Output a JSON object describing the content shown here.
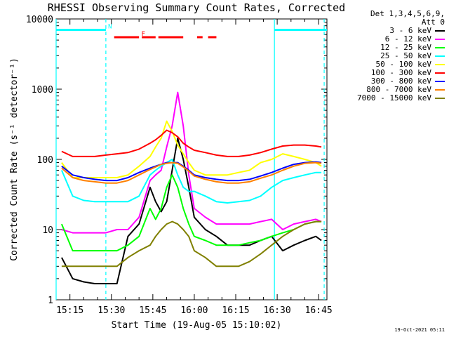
{
  "window": {
    "title": "RHESSI Observing Summary Count Rates, Corrected",
    "timestamp": "19-Oct-2021 05:11"
  },
  "legend": {
    "header_line1": "Det 1,3,4,5,6,9,",
    "header_line2": "Att 0"
  },
  "chart_data": {
    "type": "line",
    "title": "RHESSI Observing Summary Count Rates, Corrected",
    "xlabel": "Start Time (19-Aug-05 15:10:02)",
    "ylabel": "Corrected Count Rate (s⁻¹ detector⁻¹)",
    "yscale": "log",
    "xlim": [
      "15:10",
      "16:48"
    ],
    "ylim": [
      1,
      10000
    ],
    "x_ticks": [
      "15:15",
      "15:30",
      "15:45",
      "16:00",
      "16:15",
      "16:30",
      "16:45"
    ],
    "y_ticks": [
      "1",
      "10",
      "100",
      "1000",
      "10000"
    ],
    "legend_position": "top-right, outside plot",
    "grid": false,
    "x": [
      "15:12",
      "15:16",
      "15:20",
      "15:24",
      "15:28",
      "15:32",
      "15:36",
      "15:40",
      "15:44",
      "15:46",
      "15:48",
      "15:50",
      "15:52",
      "15:54",
      "15:56",
      "15:58",
      "16:00",
      "16:04",
      "16:08",
      "16:12",
      "16:16",
      "16:20",
      "16:24",
      "16:28",
      "16:32",
      "16:36",
      "16:40",
      "16:44",
      "16:46"
    ],
    "series": [
      {
        "name": "3 - 6 keV",
        "color": "#000000",
        "values": [
          4,
          2,
          1.8,
          1.7,
          1.7,
          1.7,
          8,
          12,
          40,
          25,
          18,
          25,
          70,
          200,
          100,
          40,
          15,
          10,
          8,
          6,
          6,
          6,
          7,
          8,
          5,
          6,
          7,
          8,
          7
        ]
      },
      {
        "name": "6 - 12 keV",
        "color": "#ff00ff",
        "values": [
          10,
          9,
          9,
          9,
          9,
          10,
          10,
          15,
          50,
          60,
          70,
          150,
          300,
          900,
          300,
          60,
          20,
          15,
          12,
          12,
          12,
          12,
          13,
          14,
          10,
          12,
          13,
          14,
          13
        ]
      },
      {
        "name": "12 - 25 keV",
        "color": "#00ff00",
        "values": [
          12,
          5,
          5,
          5,
          5,
          5,
          6,
          8,
          20,
          14,
          20,
          40,
          60,
          40,
          20,
          12,
          8,
          7,
          6,
          6,
          6,
          6.5,
          7,
          8,
          9,
          10,
          12,
          13,
          13
        ]
      },
      {
        "name": "25 - 50 keV",
        "color": "#00ffff",
        "values": [
          70,
          30,
          26,
          25,
          25,
          25,
          25,
          30,
          60,
          70,
          80,
          90,
          100,
          60,
          40,
          35,
          35,
          30,
          25,
          24,
          25,
          26,
          30,
          40,
          50,
          55,
          60,
          65,
          65
        ]
      },
      {
        "name": "50 - 100 keV",
        "color": "#ffff00",
        "values": [
          90,
          55,
          55,
          55,
          55,
          55,
          60,
          80,
          110,
          150,
          200,
          350,
          250,
          160,
          120,
          90,
          70,
          60,
          60,
          60,
          65,
          70,
          90,
          100,
          120,
          110,
          100,
          90,
          80
        ]
      },
      {
        "name": "100 - 300 keV",
        "color": "#ff0000",
        "values": [
          130,
          110,
          110,
          110,
          115,
          120,
          125,
          140,
          170,
          190,
          220,
          260,
          240,
          210,
          170,
          150,
          135,
          125,
          115,
          110,
          110,
          115,
          125,
          140,
          155,
          160,
          160,
          155,
          150
        ]
      },
      {
        "name": "300 - 800 keV",
        "color": "#0000ff",
        "values": [
          80,
          60,
          55,
          52,
          50,
          50,
          55,
          65,
          75,
          80,
          85,
          90,
          90,
          90,
          80,
          70,
          60,
          55,
          52,
          50,
          50,
          52,
          58,
          65,
          75,
          85,
          90,
          92,
          90
        ]
      },
      {
        "name": "800 - 7000 keV",
        "color": "#ff8000",
        "values": [
          75,
          55,
          50,
          48,
          46,
          46,
          50,
          60,
          72,
          78,
          85,
          88,
          90,
          88,
          78,
          68,
          58,
          52,
          48,
          46,
          46,
          48,
          54,
          60,
          70,
          80,
          88,
          90,
          88
        ]
      },
      {
        "name": "7000 - 15000 keV",
        "color": "#808000",
        "values": [
          3,
          3,
          3,
          3,
          3,
          3,
          4,
          5,
          6,
          8,
          10,
          12,
          13,
          12,
          10,
          8,
          5,
          4,
          3,
          3,
          3,
          3.5,
          4.5,
          6,
          8,
          10,
          12,
          13,
          13
        ]
      }
    ],
    "annotations": [
      {
        "type": "bar",
        "label": "N",
        "color": "#00ffff",
        "x_start": "15:10",
        "x_end": "15:28",
        "y": 7000
      },
      {
        "type": "bar",
        "label": "",
        "color": "#00ffff",
        "x_start": "16:29",
        "x_end": "16:48",
        "y": 7000
      },
      {
        "type": "bar",
        "label": "F",
        "color": "#ff0000",
        "x_start": "15:31",
        "x_end": "15:40",
        "y": 5500
      },
      {
        "type": "bar",
        "label": "",
        "color": "#ff0000",
        "x_start": "15:41",
        "x_end": "15:46",
        "y": 5500
      },
      {
        "type": "bar",
        "label": "",
        "color": "#ff0000",
        "x_start": "15:47",
        "x_end": "15:56",
        "y": 5500
      },
      {
        "type": "bar",
        "label": "",
        "color": "#ff0000",
        "x_start": "16:01",
        "x_end": "16:03",
        "y": 5500
      },
      {
        "type": "bar",
        "label": "",
        "color": "#ff0000",
        "x_start": "16:05",
        "x_end": "16:08",
        "y": 5500
      }
    ],
    "vlines": [
      {
        "x": "15:10",
        "color": "#00ffff",
        "style": "solid"
      },
      {
        "x": "15:28",
        "color": "#00ffff",
        "style": "dashed"
      },
      {
        "x": "16:29",
        "color": "#00ffff",
        "style": "solid"
      },
      {
        "x": "16:47",
        "color": "#00ffff",
        "style": "dashed"
      }
    ]
  }
}
